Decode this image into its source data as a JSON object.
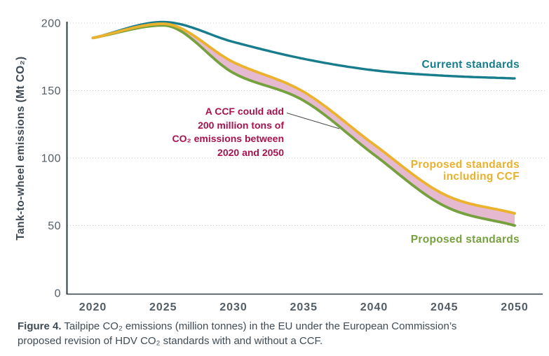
{
  "figure": {
    "caption": {
      "label": "Figure 4.",
      "line1": " Tailpipe CO₂ emissions (million tonnes) in the EU under the European Commission’s",
      "line2": "proposed revision of HDV CO₂ standards with and without a CCF."
    },
    "series_labels": {
      "current": "Current standards",
      "ccf_line1": "Proposed standards",
      "ccf_line2": "including CCF",
      "proposed": "Proposed standards"
    },
    "annotation": {
      "lines": [
        "A CCF could add",
        "200 million tons of",
        "CO₂ emissions between",
        "2020 and 2050"
      ],
      "color": "#a6134f"
    }
  },
  "chart_data": {
    "type": "line",
    "title": "",
    "xlabel": "",
    "ylabel": "Tank-to-wheel emissions (Mt CO₂)",
    "xlim": [
      2020,
      2050
    ],
    "ylim": [
      0,
      200
    ],
    "x": [
      2020,
      2025,
      2030,
      2035,
      2040,
      2045,
      2050
    ],
    "xtick_labels": [
      "2020",
      "2025",
      "2030",
      "2035",
      "2040",
      "2045",
      "2050"
    ],
    "yticks": [
      0,
      50,
      100,
      150,
      200
    ],
    "grid": "horizontal-dotted",
    "legend_position": "inline-labels",
    "series": [
      {
        "name": "Current standards",
        "color": "#177d8c",
        "values": [
          189,
          200.8,
          186,
          173.5,
          165,
          161,
          159
        ]
      },
      {
        "name": "Proposed standards including CCF",
        "color": "#ecb22e",
        "values": [
          189,
          199.5,
          171,
          149,
          110,
          73,
          59
        ]
      },
      {
        "name": "Proposed standards",
        "color": "#76a13e",
        "values": [
          189,
          198.3,
          163,
          142.5,
          102.5,
          64.5,
          50
        ]
      }
    ],
    "band": {
      "between": [
        "Proposed standards including CCF",
        "Proposed standards"
      ],
      "color": "#e5bad1",
      "meaning": "CCF could add 200 million tons of CO₂ emissions between 2020 and 2050"
    },
    "colors": {
      "axis": "#2f3c46",
      "gridline": "#c8c8c8",
      "tick_text": "#525d66",
      "annotation_leader": "#4b4b4b"
    }
  }
}
